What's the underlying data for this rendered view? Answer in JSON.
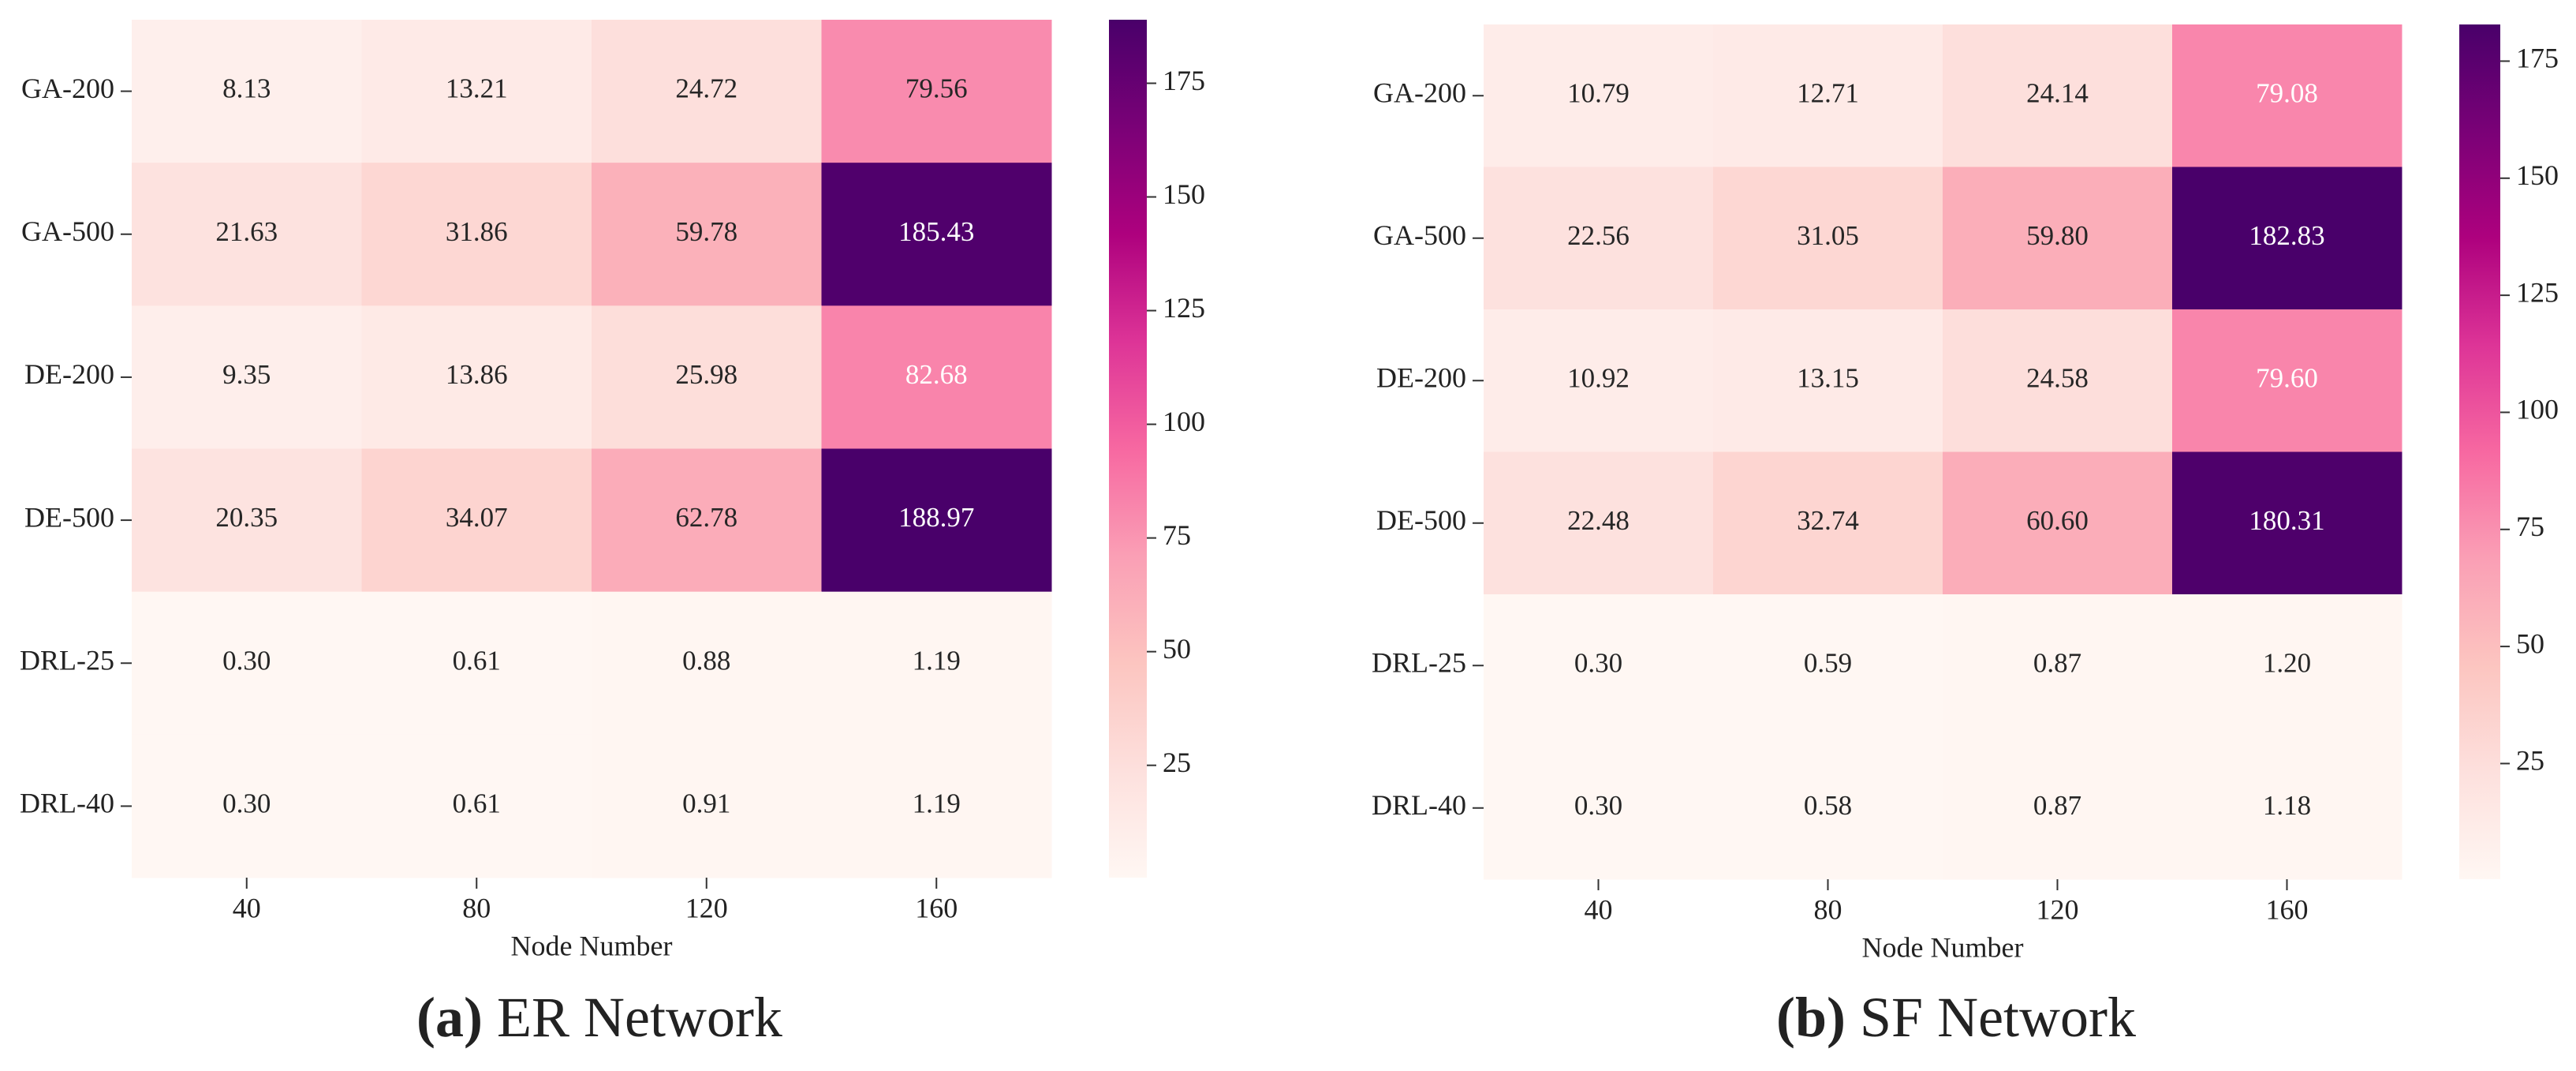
{
  "chart_data": [
    {
      "type": "heatmap",
      "caption_label": "(a)",
      "caption": "ER Network",
      "xlabel": "Node Number",
      "categories": [
        "40",
        "80",
        "120",
        "160"
      ],
      "rows": [
        "GA-200",
        "GA-500",
        "DE-200",
        "DE-500",
        "DRL-25",
        "DRL-40"
      ],
      "values": [
        [
          8.13,
          13.21,
          24.72,
          79.56
        ],
        [
          21.63,
          31.86,
          59.78,
          185.43
        ],
        [
          9.35,
          13.86,
          25.98,
          82.68
        ],
        [
          20.35,
          34.07,
          62.78,
          188.97
        ],
        [
          0.3,
          0.61,
          0.88,
          1.19
        ],
        [
          0.3,
          0.61,
          0.91,
          1.19
        ]
      ],
      "value_labels": [
        [
          "8.13",
          "13.21",
          "24.72",
          "79.56"
        ],
        [
          "21.63",
          "31.86",
          "59.78",
          "185.43"
        ],
        [
          "9.35",
          "13.86",
          "25.98",
          "82.68"
        ],
        [
          "20.35",
          "34.07",
          "62.78",
          "188.97"
        ],
        [
          "0.30",
          "0.61",
          "0.88",
          "1.19"
        ],
        [
          "0.30",
          "0.61",
          "0.91",
          "1.19"
        ]
      ],
      "colormap": "RdPu",
      "clim": [
        0.3,
        188.97
      ],
      "colorbar_ticks": [
        25,
        50,
        75,
        100,
        125,
        150,
        175
      ]
    },
    {
      "type": "heatmap",
      "caption_label": "(b)",
      "caption": "SF Network",
      "xlabel": "Node Number",
      "categories": [
        "40",
        "80",
        "120",
        "160"
      ],
      "rows": [
        "GA-200",
        "GA-500",
        "DE-200",
        "DE-500",
        "DRL-25",
        "DRL-40"
      ],
      "values": [
        [
          10.79,
          12.71,
          24.14,
          79.08
        ],
        [
          22.56,
          31.05,
          59.8,
          182.83
        ],
        [
          10.92,
          13.15,
          24.58,
          79.6
        ],
        [
          22.48,
          32.74,
          60.6,
          180.31
        ],
        [
          0.3,
          0.59,
          0.87,
          1.2
        ],
        [
          0.3,
          0.58,
          0.87,
          1.18
        ]
      ],
      "value_labels": [
        [
          "10.79",
          "12.71",
          "24.14",
          "79.08"
        ],
        [
          "22.56",
          "31.05",
          "59.80",
          "182.83"
        ],
        [
          "10.92",
          "13.15",
          "24.58",
          "79.60"
        ],
        [
          "22.48",
          "32.74",
          "60.60",
          "180.31"
        ],
        [
          "0.30",
          "0.59",
          "0.87",
          "1.20"
        ],
        [
          "0.30",
          "0.58",
          "0.87",
          "1.18"
        ]
      ],
      "colormap": "RdPu",
      "clim": [
        0.3,
        182.83
      ],
      "colorbar_ticks": [
        25,
        50,
        75,
        100,
        125,
        150,
        175
      ]
    }
  ]
}
